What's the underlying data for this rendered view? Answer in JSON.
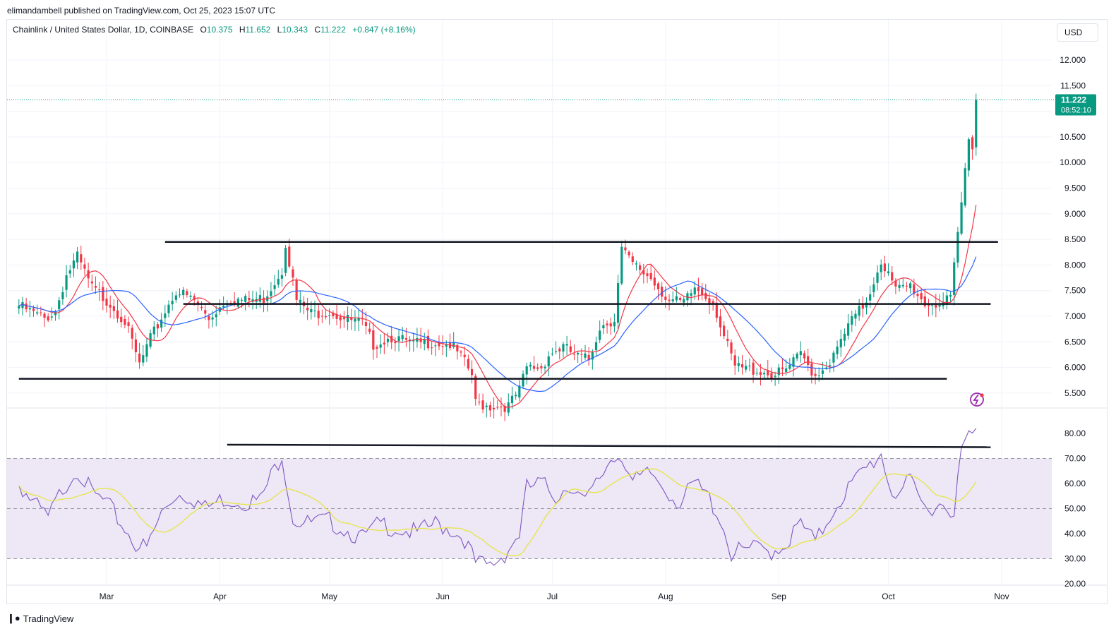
{
  "header": {
    "published_text": "elimandambell published on TradingView.com, Oct 25, 2023 15:07 UTC"
  },
  "legend": {
    "symbol": "Chainlink / United States Dollar, 1D, COINBASE",
    "o_label": "O",
    "o_value": "10.375",
    "h_label": "H",
    "h_value": "11.652",
    "l_label": "L",
    "l_value": "10.343",
    "c_label": "C",
    "c_value": "11.222",
    "change": "+0.847 (+8.16%)"
  },
  "currency_button": "USD",
  "price_tag": {
    "price": "11.222",
    "countdown": "08:52:10"
  },
  "footer": {
    "brand": "TradingView"
  },
  "colors": {
    "up": "#089981",
    "down": "#f23645",
    "ma_fast": "#f23645",
    "ma_slow": "#2962ff",
    "rsi": "#7e57c2",
    "rsi_ma": "#e6e645",
    "rsi_band": "#ede7f6"
  },
  "chart_data": [
    {
      "type": "candlestick",
      "title": "Chainlink / United States Dollar, 1D, COINBASE",
      "y_ticks": [
        "12.000",
        "11.500",
        "11.000",
        "10.500",
        "10.000",
        "9.500",
        "9.000",
        "8.500",
        "8.000",
        "7.500",
        "7.000",
        "6.500",
        "6.000",
        "5.500"
      ],
      "ylim": [
        5.2,
        12.3
      ],
      "x_ticks": [
        "Mar",
        "Apr",
        "May",
        "Jun",
        "Jul",
        "Aug",
        "Sep",
        "Oct",
        "Nov"
      ],
      "x_start": "2023-02-05",
      "last_price": 11.222,
      "moving_averages": [
        {
          "name": "MA fast",
          "color": "#f23645"
        },
        {
          "name": "MA slow",
          "color": "#2962ff"
        }
      ],
      "horizontal_lines": [
        {
          "from": "2023-03-17",
          "to": "2023-10-31",
          "y": 8.45
        },
        {
          "from": "2023-03-22",
          "to": "2023-10-29",
          "y": 7.24
        },
        {
          "from": "2023-02-05",
          "to": "2023-10-17",
          "y": 5.78
        }
      ],
      "anchors": [
        [
          "2023-02-05",
          7.2
        ],
        [
          "2023-02-12",
          6.95
        ],
        [
          "2023-02-15",
          7.1
        ],
        [
          "2023-02-18",
          7.8
        ],
        [
          "2023-02-21",
          8.15
        ],
        [
          "2023-02-25",
          7.55
        ],
        [
          "2023-03-02",
          7.25
        ],
        [
          "2023-03-06",
          6.9
        ],
        [
          "2023-03-10",
          6.05
        ],
        [
          "2023-03-13",
          6.55
        ],
        [
          "2023-03-17",
          7.1
        ],
        [
          "2023-03-20",
          7.5
        ],
        [
          "2023-03-25",
          7.3
        ],
        [
          "2023-03-29",
          6.95
        ],
        [
          "2023-04-03",
          7.35
        ],
        [
          "2023-04-08",
          7.3
        ],
        [
          "2023-04-13",
          7.35
        ],
        [
          "2023-04-18",
          7.9
        ],
        [
          "2023-04-19",
          8.45
        ],
        [
          "2023-04-22",
          7.3
        ],
        [
          "2023-04-26",
          7.05
        ],
        [
          "2023-05-01",
          7.1
        ],
        [
          "2023-05-05",
          6.95
        ],
        [
          "2023-05-10",
          6.85
        ],
        [
          "2023-05-13",
          6.45
        ],
        [
          "2023-05-18",
          6.6
        ],
        [
          "2023-05-24",
          6.45
        ],
        [
          "2023-05-29",
          6.5
        ],
        [
          "2023-06-03",
          6.45
        ],
        [
          "2023-06-06",
          6.2
        ],
        [
          "2023-06-09",
          5.85
        ],
        [
          "2023-06-10",
          5.3
        ],
        [
          "2023-06-14",
          5.25
        ],
        [
          "2023-06-19",
          5.25
        ],
        [
          "2023-06-22",
          5.55
        ],
        [
          "2023-06-24",
          6.0
        ],
        [
          "2023-06-28",
          6.0
        ],
        [
          "2023-06-30",
          6.25
        ],
        [
          "2023-07-04",
          6.4
        ],
        [
          "2023-07-08",
          6.2
        ],
        [
          "2023-07-11",
          6.15
        ],
        [
          "2023-07-14",
          6.8
        ],
        [
          "2023-07-18",
          6.95
        ],
        [
          "2023-07-20",
          8.3
        ],
        [
          "2023-07-23",
          8.0
        ],
        [
          "2023-07-28",
          7.75
        ],
        [
          "2023-08-02",
          7.3
        ],
        [
          "2023-08-06",
          7.25
        ],
        [
          "2023-08-09",
          7.55
        ],
        [
          "2023-08-14",
          7.3
        ],
        [
          "2023-08-17",
          6.6
        ],
        [
          "2023-08-20",
          6.0
        ],
        [
          "2023-08-26",
          5.95
        ],
        [
          "2023-08-31",
          5.85
        ],
        [
          "2023-09-03",
          5.95
        ],
        [
          "2023-09-07",
          6.25
        ],
        [
          "2023-09-11",
          5.85
        ],
        [
          "2023-09-16",
          6.2
        ],
        [
          "2023-09-20",
          6.8
        ],
        [
          "2023-09-25",
          7.3
        ],
        [
          "2023-09-29",
          8.1
        ],
        [
          "2023-10-03",
          7.5
        ],
        [
          "2023-10-07",
          7.6
        ],
        [
          "2023-10-11",
          7.25
        ],
        [
          "2023-10-14",
          7.25
        ],
        [
          "2023-10-18",
          7.3
        ],
        [
          "2023-10-20",
          8.6
        ],
        [
          "2023-10-21",
          9.2
        ],
        [
          "2023-10-23",
          10.5
        ],
        [
          "2023-10-24",
          10.375
        ],
        [
          "2023-10-25",
          11.222
        ]
      ]
    },
    {
      "type": "line",
      "title": "RSI",
      "y_ticks": [
        "80.00",
        "70.00",
        "60.00",
        "50.00",
        "40.00",
        "30.00",
        "20.00"
      ],
      "ylim": [
        17,
        87
      ],
      "band": [
        30,
        70
      ],
      "midline": 50,
      "trend_line": {
        "from": "2023-04-03",
        "to": "2023-10-29",
        "y1": 75.5,
        "y2": 74.5
      },
      "anchors": [
        [
          "2023-02-05",
          60
        ],
        [
          "2023-02-09",
          52
        ],
        [
          "2023-02-13",
          46
        ],
        [
          "2023-02-17",
          58
        ],
        [
          "2023-02-21",
          66
        ],
        [
          "2023-02-25",
          56
        ],
        [
          "2023-03-01",
          52
        ],
        [
          "2023-03-05",
          44
        ],
        [
          "2023-03-09",
          36
        ],
        [
          "2023-03-12",
          34
        ],
        [
          "2023-03-16",
          48
        ],
        [
          "2023-03-20",
          56
        ],
        [
          "2023-03-24",
          55
        ],
        [
          "2023-03-28",
          50
        ],
        [
          "2023-04-02",
          54
        ],
        [
          "2023-04-07",
          53
        ],
        [
          "2023-04-12",
          53
        ],
        [
          "2023-04-16",
          66
        ],
        [
          "2023-04-18",
          72
        ],
        [
          "2023-04-21",
          46
        ],
        [
          "2023-04-25",
          44
        ],
        [
          "2023-05-01",
          45
        ],
        [
          "2023-05-05",
          42
        ],
        [
          "2023-05-10",
          38
        ],
        [
          "2023-05-15",
          44
        ],
        [
          "2023-05-20",
          42
        ],
        [
          "2023-05-25",
          40
        ],
        [
          "2023-05-30",
          44
        ],
        [
          "2023-06-03",
          42
        ],
        [
          "2023-06-07",
          38
        ],
        [
          "2023-06-10",
          28
        ],
        [
          "2023-06-14",
          27
        ],
        [
          "2023-06-18",
          32
        ],
        [
          "2023-06-22",
          40
        ],
        [
          "2023-06-24",
          58
        ],
        [
          "2023-06-28",
          60
        ],
        [
          "2023-07-02",
          55
        ],
        [
          "2023-07-06",
          60
        ],
        [
          "2023-07-10",
          52
        ],
        [
          "2023-07-14",
          62
        ],
        [
          "2023-07-17",
          70
        ],
        [
          "2023-07-20",
          72
        ],
        [
          "2023-07-23",
          60
        ],
        [
          "2023-07-28",
          64
        ],
        [
          "2023-08-01",
          58
        ],
        [
          "2023-08-05",
          52
        ],
        [
          "2023-08-09",
          60
        ],
        [
          "2023-08-13",
          54
        ],
        [
          "2023-08-16",
          46
        ],
        [
          "2023-08-19",
          32
        ],
        [
          "2023-08-25",
          34
        ],
        [
          "2023-08-30",
          33
        ],
        [
          "2023-09-03",
          36
        ],
        [
          "2023-09-07",
          44
        ],
        [
          "2023-09-11",
          36
        ],
        [
          "2023-09-16",
          50
        ],
        [
          "2023-09-20",
          58
        ],
        [
          "2023-09-25",
          66
        ],
        [
          "2023-09-29",
          72
        ],
        [
          "2023-10-02",
          56
        ],
        [
          "2023-10-07",
          60
        ],
        [
          "2023-10-11",
          50
        ],
        [
          "2023-10-15",
          52
        ],
        [
          "2023-10-19",
          50
        ],
        [
          "2023-10-21",
          72
        ],
        [
          "2023-10-23",
          80
        ],
        [
          "2023-10-24",
          78
        ],
        [
          "2023-10-25",
          82
        ]
      ]
    }
  ]
}
